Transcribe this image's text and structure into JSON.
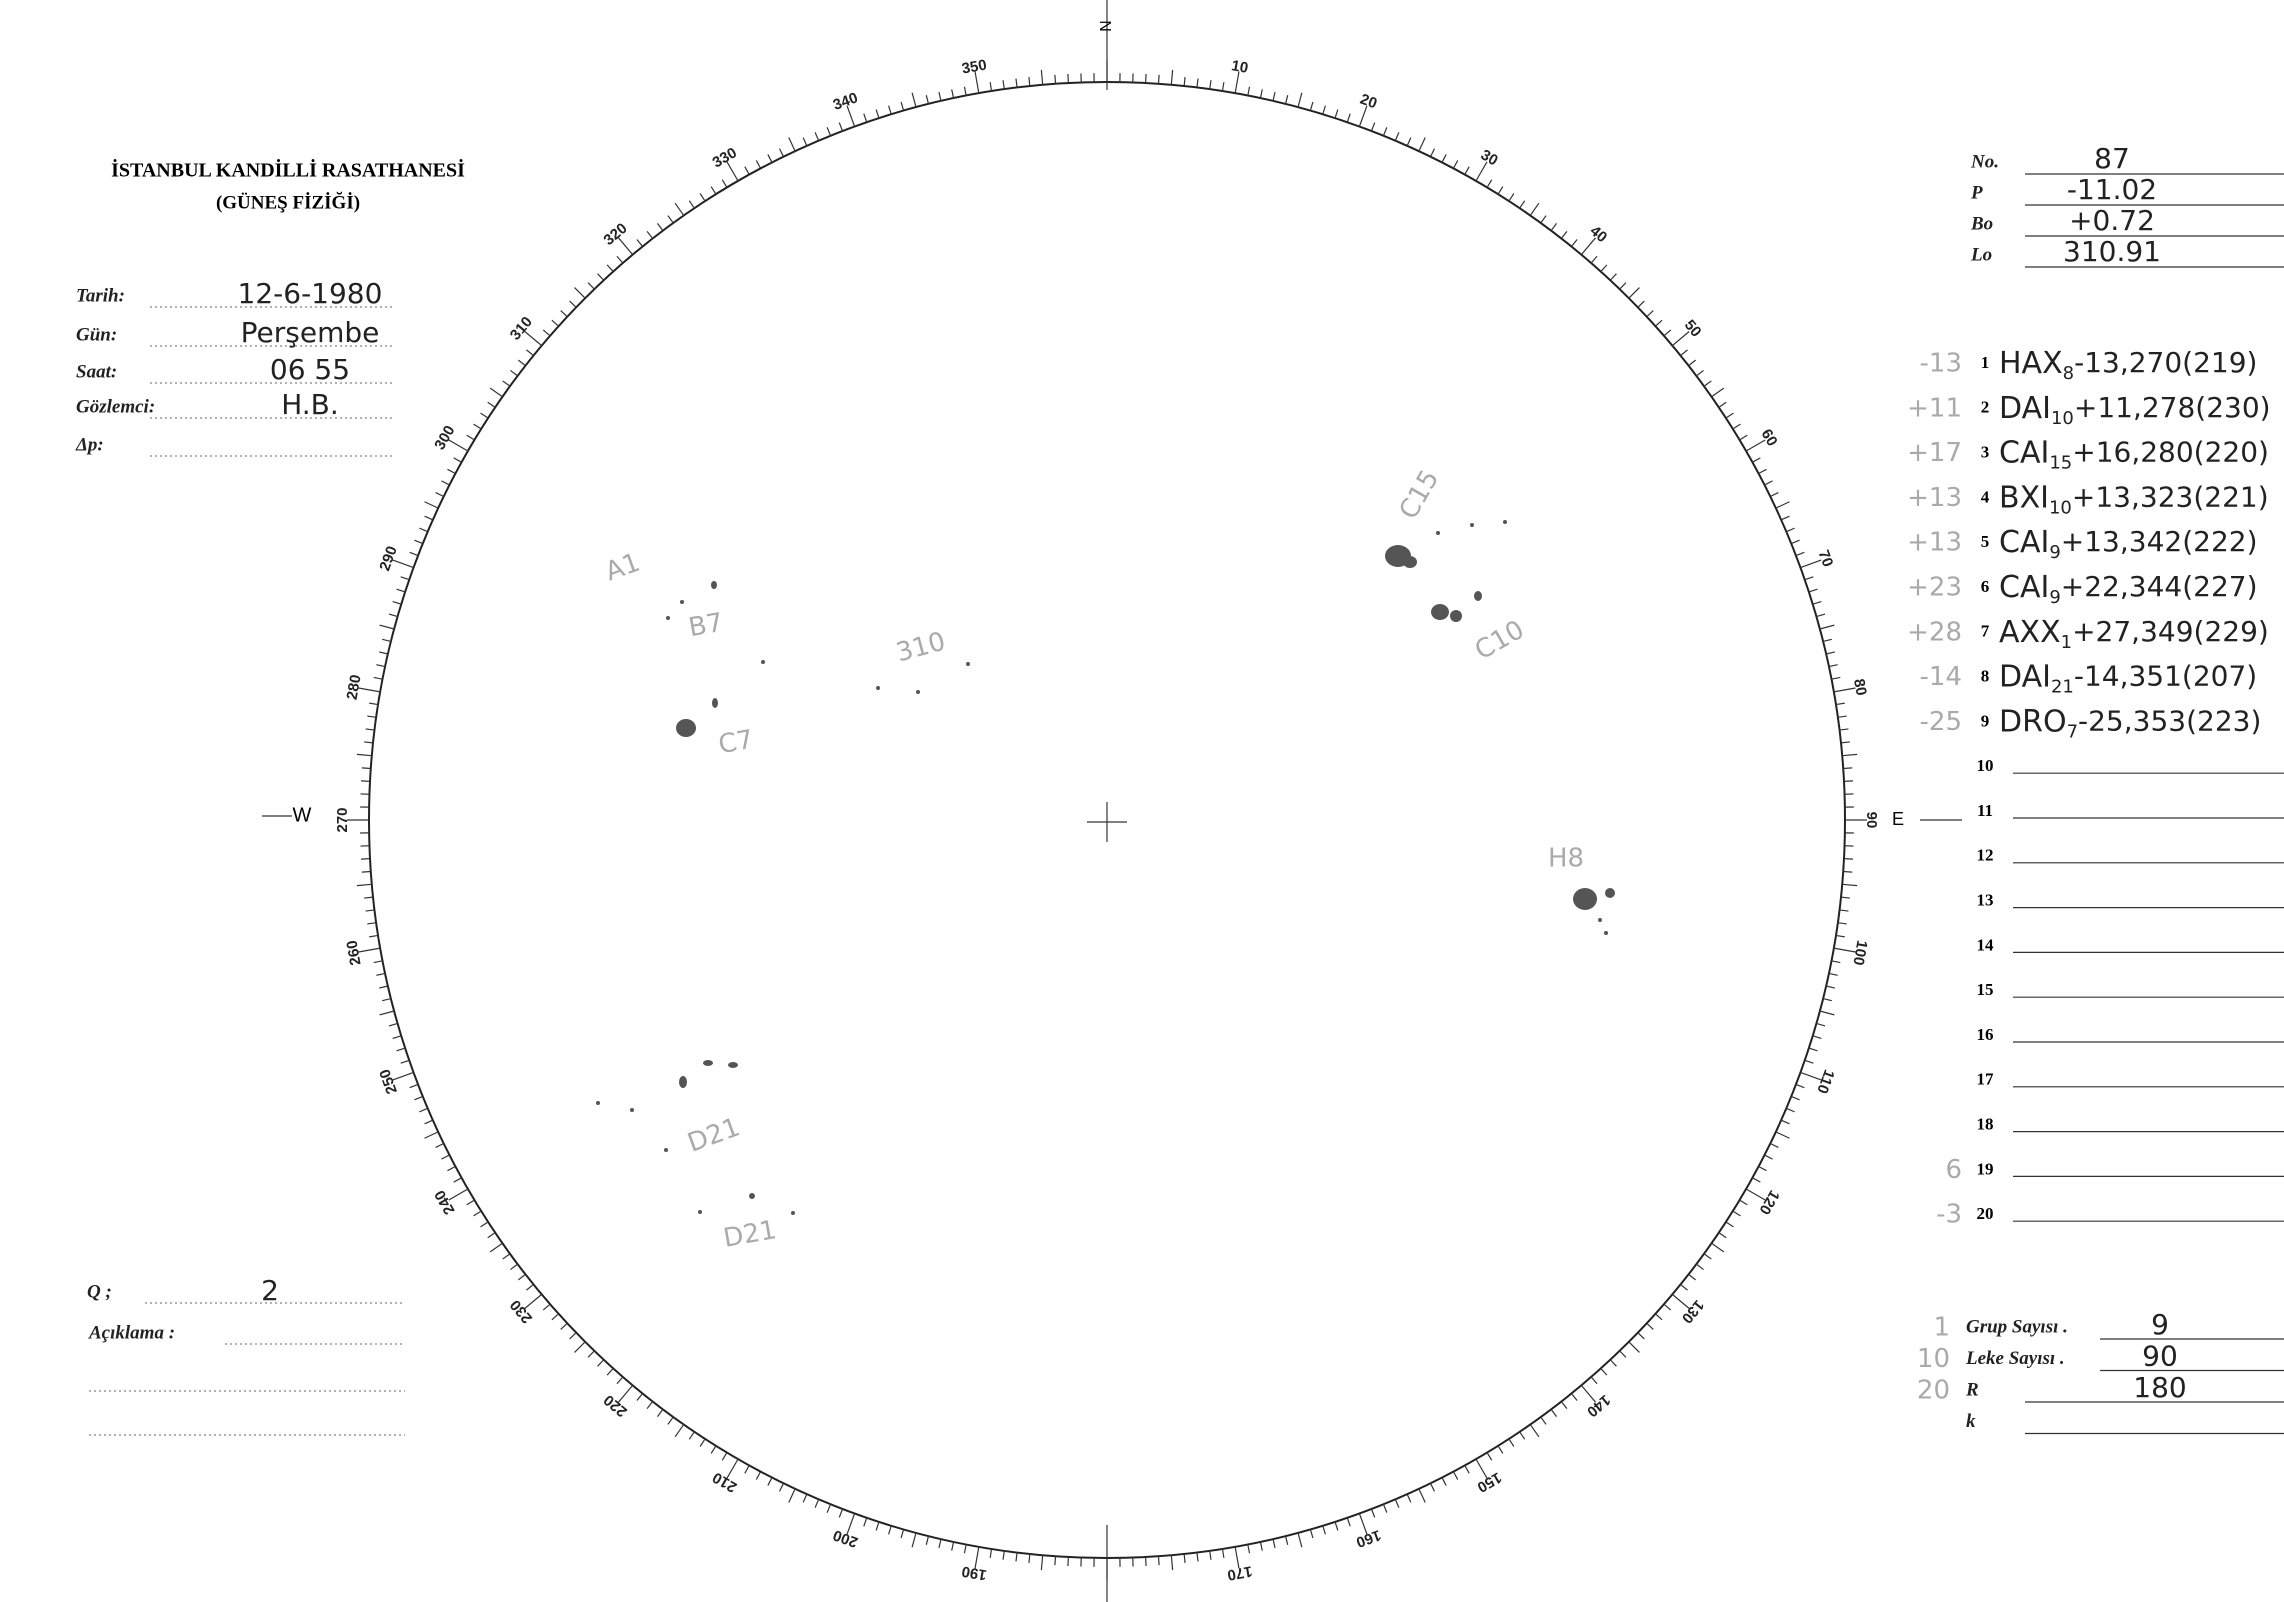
{
  "header": {
    "title": "İSTANBUL KANDİLLİ RASATHANESİ",
    "subtitle": "(GÜNEŞ FİZİĞİ)"
  },
  "fields": [
    {
      "label": "Tarih:",
      "value": "12-6-1980"
    },
    {
      "label": "Gün:",
      "value": "Perşembe"
    },
    {
      "label": "Saat:",
      "value": "06 55"
    },
    {
      "label": "Gözlemci:",
      "value": "H.B."
    },
    {
      "label": "Δp:",
      "value": ""
    }
  ],
  "params": [
    {
      "label": "No.",
      "value": "87"
    },
    {
      "label": "P",
      "value": "-11.02"
    },
    {
      "label": "Bo",
      "value": "+0.72"
    },
    {
      "label": "Lo",
      "value": "310.91"
    }
  ],
  "groups": [
    {
      "note": "-13",
      "no": "1",
      "code": "HAX",
      "sub": "8",
      "rest": "-13,270(219)"
    },
    {
      "note": "+11",
      "no": "2",
      "code": "DAI",
      "sub": "10",
      "rest": "+11,278(230)"
    },
    {
      "note": "+17",
      "no": "3",
      "code": "CAI",
      "sub": "15",
      "rest": "+16,280(220)"
    },
    {
      "note": "+13",
      "no": "4",
      "code": "BXI",
      "sub": "10",
      "rest": "+13,323(221)"
    },
    {
      "note": "+13",
      "no": "5",
      "code": "CAI",
      "sub": "9",
      "rest": "+13,342(222)"
    },
    {
      "note": "+23",
      "no": "6",
      "code": "CAI",
      "sub": "9",
      "rest": "+22,344(227)"
    },
    {
      "note": "+28",
      "no": "7",
      "code": "AXX",
      "sub": "1",
      "rest": "+27,349(229)"
    },
    {
      "note": "-14",
      "no": "8",
      "code": "DAI",
      "sub": "21",
      "rest": "-14,351(207)"
    },
    {
      "note": "-25",
      "no": "9",
      "code": "DRO",
      "sub": "7",
      "rest": "-25,353(223)"
    },
    {
      "note": "",
      "no": "10",
      "code": "",
      "sub": "",
      "rest": ""
    },
    {
      "note": "",
      "no": "11",
      "code": "",
      "sub": "",
      "rest": ""
    },
    {
      "note": "",
      "no": "12",
      "code": "",
      "sub": "",
      "rest": ""
    },
    {
      "note": "",
      "no": "13",
      "code": "",
      "sub": "",
      "rest": ""
    },
    {
      "note": "",
      "no": "14",
      "code": "",
      "sub": "",
      "rest": ""
    },
    {
      "note": "",
      "no": "15",
      "code": "",
      "sub": "",
      "rest": ""
    },
    {
      "note": "",
      "no": "16",
      "code": "",
      "sub": "",
      "rest": ""
    },
    {
      "note": "",
      "no": "17",
      "code": "",
      "sub": "",
      "rest": ""
    },
    {
      "note": "",
      "no": "18",
      "code": "",
      "sub": "",
      "rest": ""
    },
    {
      "note": "6",
      "no": "19",
      "code": "",
      "sub": "",
      "rest": ""
    },
    {
      "note": "-3",
      "no": "20",
      "code": "",
      "sub": "",
      "rest": ""
    }
  ],
  "footer": {
    "q_label": "Q ;",
    "q_value": "2",
    "remark_label": "Açıklama :"
  },
  "counts": [
    {
      "note": "1",
      "label": "Grup Sayısı .",
      "value": "9"
    },
    {
      "note": "10",
      "label": "Leke Sayısı .",
      "value": "90"
    },
    {
      "note": "20",
      "label": "R",
      "value": "180"
    },
    {
      "note": "",
      "label": "k",
      "value": ""
    }
  ],
  "disk": {
    "north": "N",
    "west": "W",
    "east": "E",
    "degree_labels": [
      10,
      20,
      30,
      40,
      50,
      60,
      70,
      80,
      90,
      100,
      110,
      120,
      130,
      140,
      150,
      160,
      170,
      190,
      200,
      210,
      220,
      230,
      240,
      250,
      260,
      270,
      280,
      290,
      300,
      310,
      320,
      330,
      340,
      350
    ],
    "spot_labels": [
      "C15",
      "C10",
      "H8",
      "C7",
      "A1",
      "B7",
      "310",
      "D21",
      "D21"
    ]
  }
}
